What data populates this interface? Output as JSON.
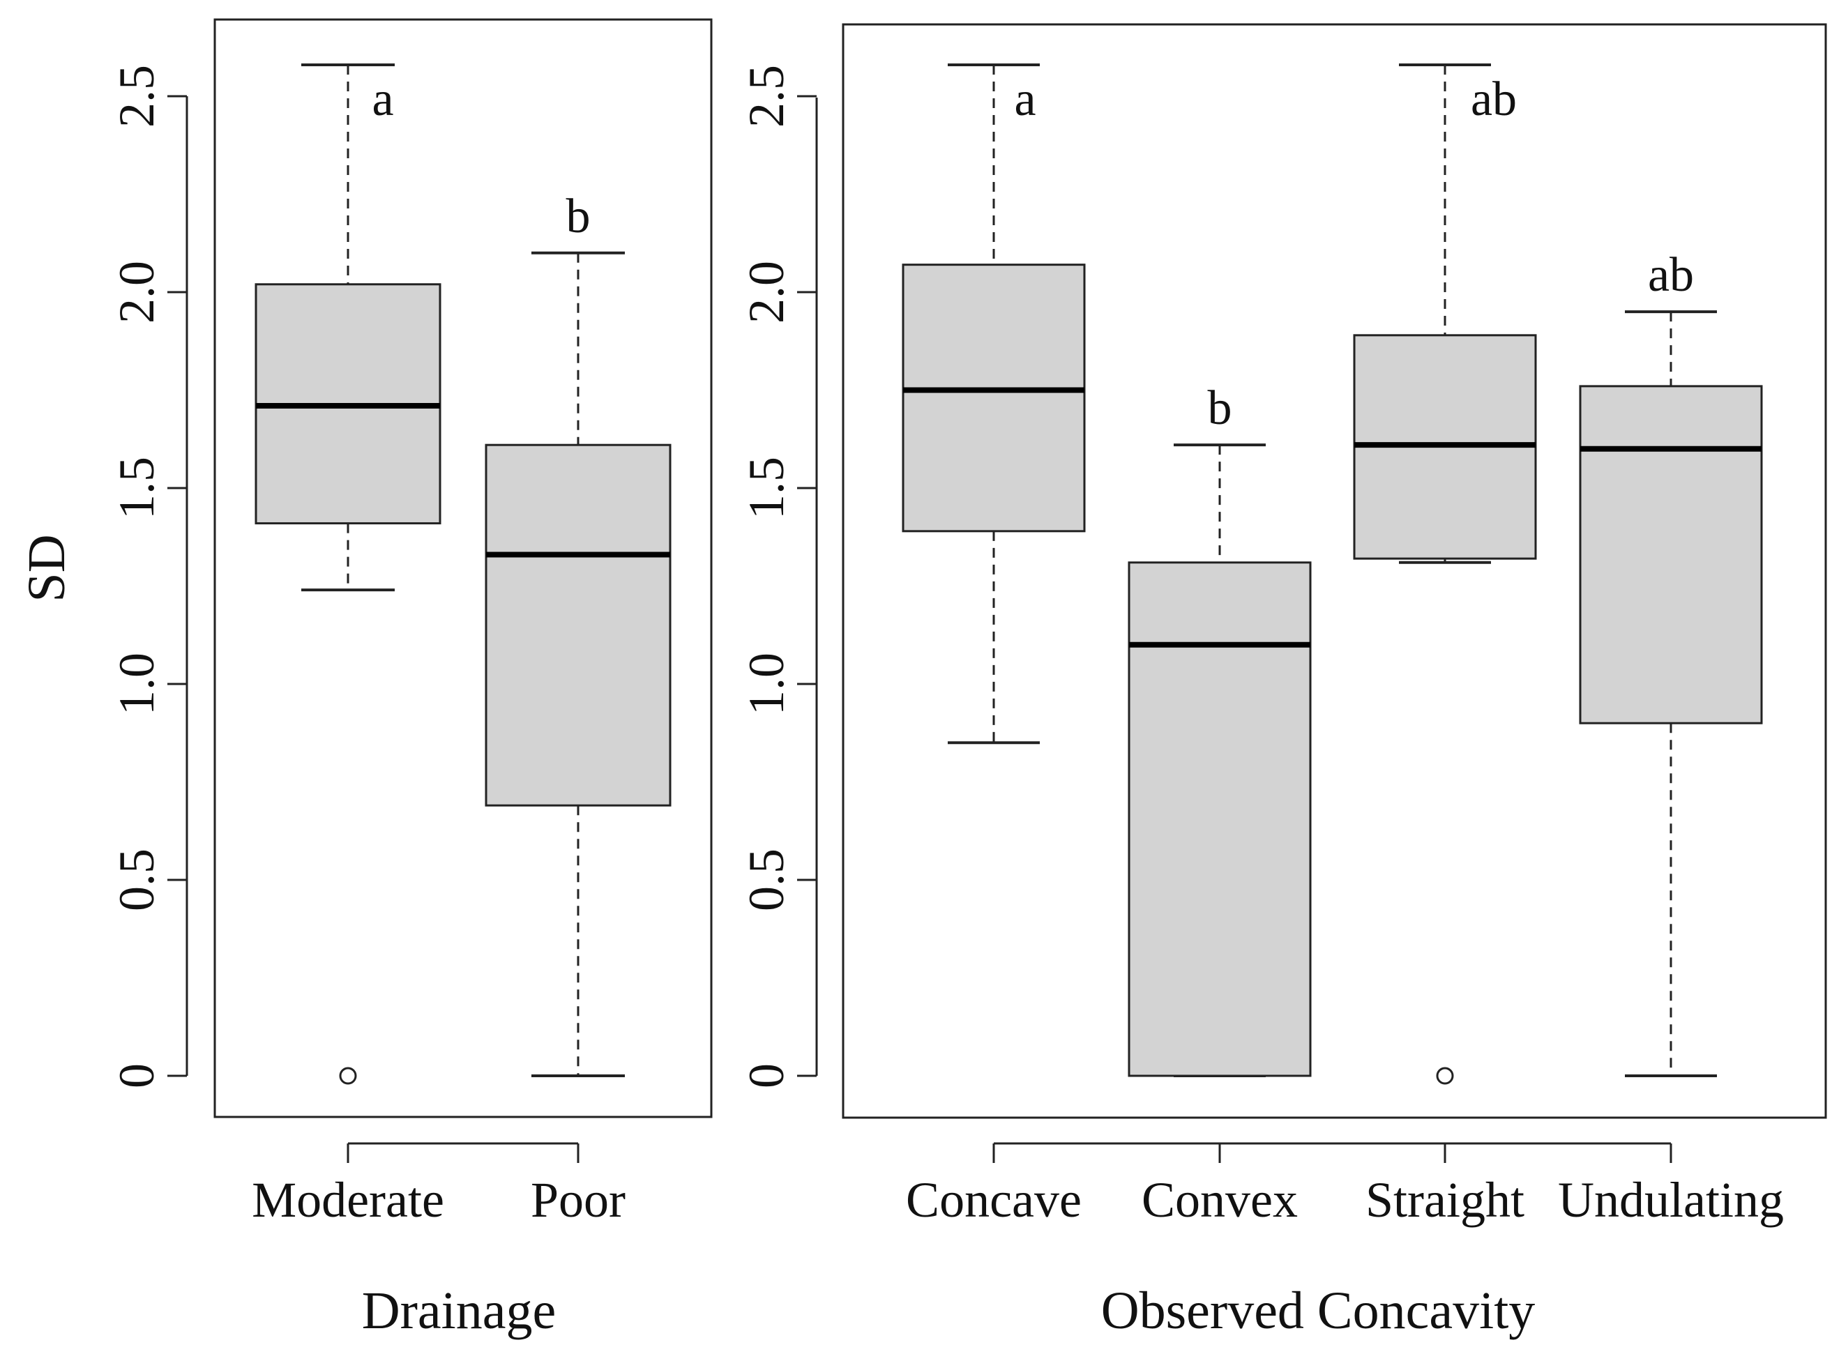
{
  "chart_data": [
    {
      "type": "box",
      "panel": "left",
      "xlabel": "Drainage",
      "ylabel": "SD",
      "ylim": [
        -0.1,
        2.7
      ],
      "yticks": [
        0,
        0.5,
        1.0,
        1.5,
        2.0,
        2.5
      ],
      "ytick_labels": [
        "0",
        "0.5",
        "1.0",
        "1.5",
        "2.0",
        "2.5"
      ],
      "box_color": "#d3d3d3",
      "categories": [
        "Moderate",
        "Poor"
      ],
      "boxes": [
        {
          "category": "Moderate",
          "whisker_low": 1.24,
          "q1": 1.41,
          "median": 1.71,
          "q3": 2.02,
          "whisker_high": 2.58,
          "outliers": [
            0
          ],
          "letter": "a"
        },
        {
          "category": "Poor",
          "whisker_low": 0,
          "q1": 0.69,
          "median": 1.33,
          "q3": 1.61,
          "whisker_high": 2.1,
          "outliers": [],
          "letter": "b"
        }
      ]
    },
    {
      "type": "box",
      "panel": "right",
      "xlabel": "Observed Concavity",
      "ylabel": "",
      "ylim": [
        -0.1,
        2.7
      ],
      "yticks": [
        0,
        0.5,
        1.0,
        1.5,
        2.0,
        2.5
      ],
      "ytick_labels": [
        "0",
        "0.5",
        "1.0",
        "1.5",
        "2.0",
        "2.5"
      ],
      "box_color": "#d3d3d3",
      "categories": [
        "Concave",
        "Convex",
        "Straight",
        "Undulating"
      ],
      "boxes": [
        {
          "category": "Concave",
          "whisker_low": 0.85,
          "q1": 1.39,
          "median": 1.75,
          "q3": 2.07,
          "whisker_high": 2.58,
          "outliers": [],
          "letter": "a"
        },
        {
          "category": "Convex",
          "whisker_low": 0,
          "q1": 0,
          "median": 1.1,
          "q3": 1.31,
          "whisker_high": 1.61,
          "outliers": [],
          "letter": "b"
        },
        {
          "category": "Straight",
          "whisker_low": 1.31,
          "q1": 1.32,
          "median": 1.61,
          "q3": 1.89,
          "whisker_high": 2.58,
          "outliers": [
            0
          ],
          "letter": "ab"
        },
        {
          "category": "Undulating",
          "whisker_low": 0,
          "q1": 0.9,
          "median": 1.6,
          "q3": 1.76,
          "whisker_high": 1.95,
          "outliers": [],
          "letter": "ab"
        }
      ]
    }
  ]
}
